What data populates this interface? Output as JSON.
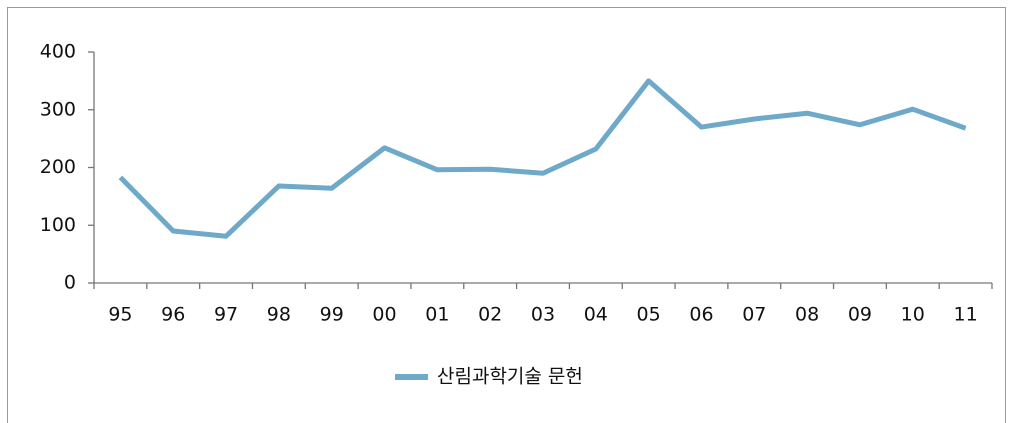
{
  "chart_data": {
    "type": "line",
    "categories": [
      "95",
      "96",
      "97",
      "98",
      "99",
      "00",
      "01",
      "02",
      "03",
      "04",
      "05",
      "06",
      "07",
      "08",
      "09",
      "10",
      "11"
    ],
    "series": [
      {
        "name": "산림과학기술 문헌",
        "color": "#6ea9ca",
        "values": [
          183,
          90,
          81,
          168,
          164,
          234,
          196,
          197,
          190,
          232,
          350,
          270,
          284,
          294,
          274,
          301,
          268
        ]
      }
    ],
    "ylim": [
      0,
      400
    ],
    "yticks": [
      0,
      100,
      200,
      300,
      400
    ],
    "legend": "bottom"
  }
}
